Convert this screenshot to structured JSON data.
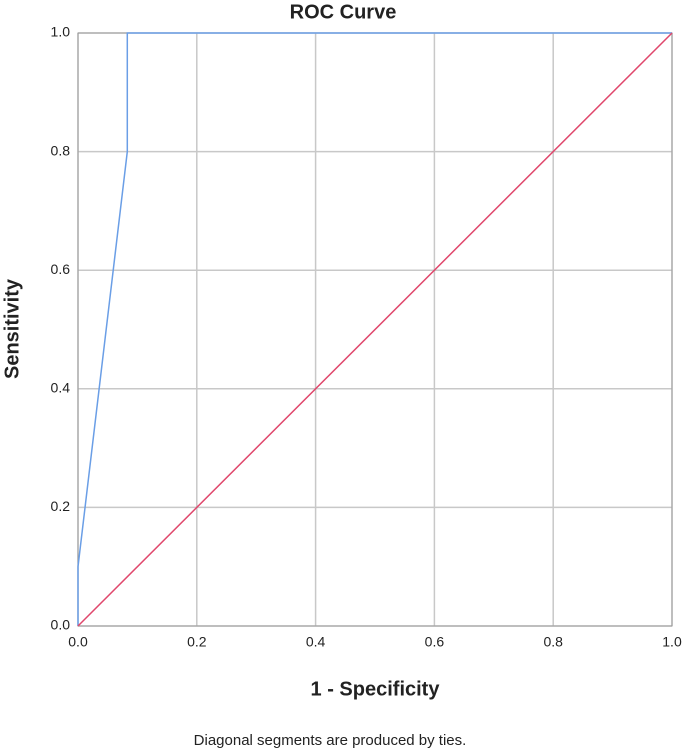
{
  "chart_data": {
    "type": "line",
    "title": "ROC Curve",
    "x_label": "1 - Specificity",
    "y_label": "Sensitivity",
    "note": "Diagonal segments are produced by ties.",
    "series": [
      {
        "color": "#6a9ee6",
        "x": [
          0,
          0,
          0.083,
          0.083,
          1
        ],
        "values": [
          0,
          0.1,
          0.8,
          1,
          1
        ]
      },
      {
        "color": "#e0476c",
        "x": [
          0,
          1
        ],
        "values": [
          0,
          1
        ]
      }
    ],
    "xlim": [
      0,
      1
    ],
    "ylim": [
      0,
      1
    ],
    "xticks": [
      {
        "value": 0,
        "label": "0.0"
      },
      {
        "value": 0.2,
        "label": "0.2"
      },
      {
        "value": 0.4,
        "label": "0.4"
      },
      {
        "value": 0.6,
        "label": "0.6"
      },
      {
        "value": 0.8,
        "label": "0.8"
      },
      {
        "value": 1,
        "label": "1.0"
      }
    ],
    "yticks": [
      {
        "value": 0,
        "label": "0.0"
      },
      {
        "value": 0.2,
        "label": "0.2"
      },
      {
        "value": 0.4,
        "label": "0.4"
      },
      {
        "value": 0.6,
        "label": "0.6"
      },
      {
        "value": 0.8,
        "label": "0.8"
      },
      {
        "value": 1,
        "label": "1.0"
      }
    ],
    "grid": true
  }
}
